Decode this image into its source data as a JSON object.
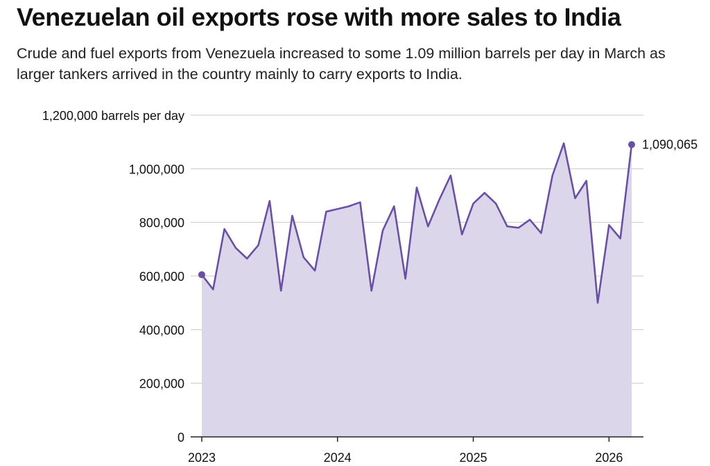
{
  "header": {
    "title": "Venezuelan oil exports rose with more sales to India",
    "subtitle": "Crude and fuel exports from Venezuela increased to some 1.09 million barrels per day in March as larger tankers arrived in the country mainly to carry exports to India."
  },
  "colors": {
    "line": "#6a4fa8",
    "area": "#dcd6eb",
    "grid": "#c8c8c8",
    "axis": "#222222"
  },
  "chart_data": {
    "type": "area",
    "title": "Venezuelan oil exports rose with more sales to India",
    "subtitle": "Crude and fuel exports from Venezuela increased to some 1.09 million barrels per day in March as larger tankers arrived in the country mainly to carry exports to India.",
    "ylabel": "barrels per day",
    "xlim": [
      "2023-01",
      "2026-03"
    ],
    "ylim": [
      0,
      1200000
    ],
    "yticks": [
      0,
      200000,
      400000,
      600000,
      800000,
      1000000,
      1200000
    ],
    "ytick_labels": [
      "0",
      "200,000",
      "400,000",
      "600,000",
      "800,000",
      "1,000,000",
      "1,200,000 barrels per day"
    ],
    "xticks": [
      "2023-01",
      "2024-01",
      "2025-01",
      "2026-01"
    ],
    "xtick_labels": [
      "2023",
      "2024",
      "2025",
      "2026"
    ],
    "grid": true,
    "series": [
      {
        "x": [
          "2023-01",
          "2023-02",
          "2023-03",
          "2023-04",
          "2023-05",
          "2023-06",
          "2023-07",
          "2023-08",
          "2023-09",
          "2023-10",
          "2023-11",
          "2023-12",
          "2024-01",
          "2024-02",
          "2024-03",
          "2024-04",
          "2024-05",
          "2024-06",
          "2024-07",
          "2024-08",
          "2024-09",
          "2024-10",
          "2024-11",
          "2024-12",
          "2025-01",
          "2025-02",
          "2025-03",
          "2025-04",
          "2025-05",
          "2025-06",
          "2025-07",
          "2025-08",
          "2025-09",
          "2025-10",
          "2025-11",
          "2025-12",
          "2026-01",
          "2026-02",
          "2026-03"
        ],
        "values": [
          605000,
          550000,
          775000,
          705000,
          665000,
          715000,
          880000,
          545000,
          825000,
          670000,
          620000,
          840000,
          850000,
          860000,
          875000,
          545000,
          770000,
          860000,
          590000,
          930000,
          785000,
          885000,
          975000,
          755000,
          870000,
          910000,
          870000,
          785000,
          780000,
          810000,
          760000,
          975000,
          1095000,
          890000,
          955000,
          500000,
          790000,
          740000,
          1090065
        ]
      }
    ],
    "annotations": [
      {
        "x": "2026-03",
        "y": 1090065,
        "text": "1,090,065"
      }
    ]
  }
}
